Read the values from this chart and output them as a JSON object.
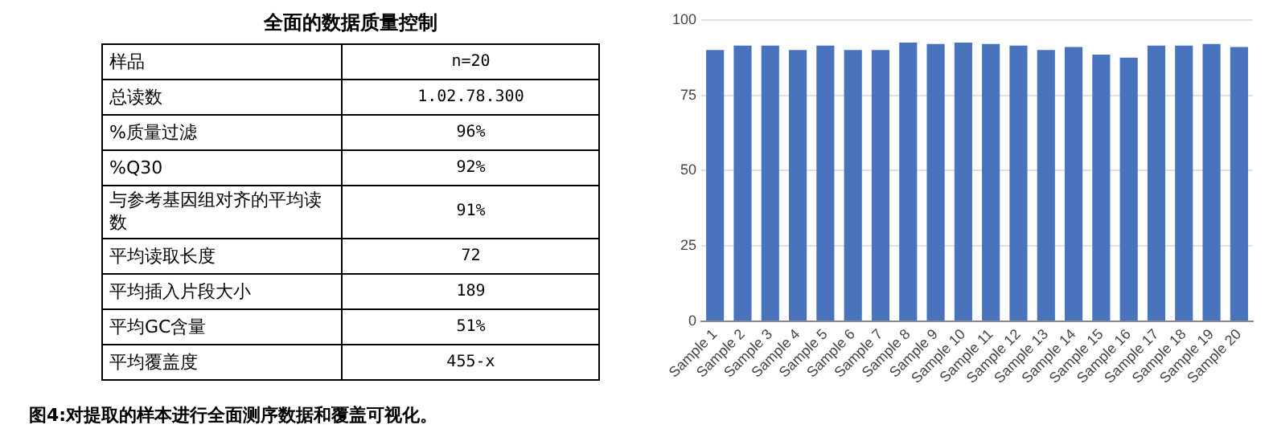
{
  "chart_data": [
    {
      "type": "other",
      "title": "全面的数据质量控制",
      "categories": [
        "样品",
        "总读数",
        "%质量过滤",
        "%Q30",
        "与参考基因组对齐的平均读数",
        "平均读取长度",
        "平均插入片段大小",
        "平均GC含量",
        "平均覆盖度"
      ],
      "value_labels": [
        "n=20",
        "1.02.78.300",
        "96%",
        "92%",
        "91%",
        "72",
        "189",
        "51%",
        "455-x"
      ],
      "annotations": [
        "图4:对提取的样本进行全面测序数据和覆盖可视化。"
      ]
    },
    {
      "type": "bar",
      "categories": [
        "Sample 1",
        "Sample 2",
        "Sample 3",
        "Sample 4",
        "Sample 5",
        "Sample 6",
        "Sample 7",
        "Sample 8",
        "Sample 9",
        "Sample 10",
        "Sample 11",
        "Sample 12",
        "Sample 13",
        "Sample 14",
        "Sample 15",
        "Sample 16",
        "Sample 17",
        "Sample 18",
        "Sample 19",
        "Sample 20"
      ],
      "values": [
        90,
        91.5,
        91.5,
        90,
        91.5,
        90,
        90,
        92.5,
        92,
        92.5,
        92,
        91.5,
        90,
        91,
        88.5,
        87.5,
        91.5,
        91.5,
        92,
        91
      ],
      "color": "#4a73be",
      "ylim": [
        0,
        100
      ],
      "yticks": [
        0,
        25,
        50,
        75,
        100
      ],
      "grid": "y"
    }
  ]
}
